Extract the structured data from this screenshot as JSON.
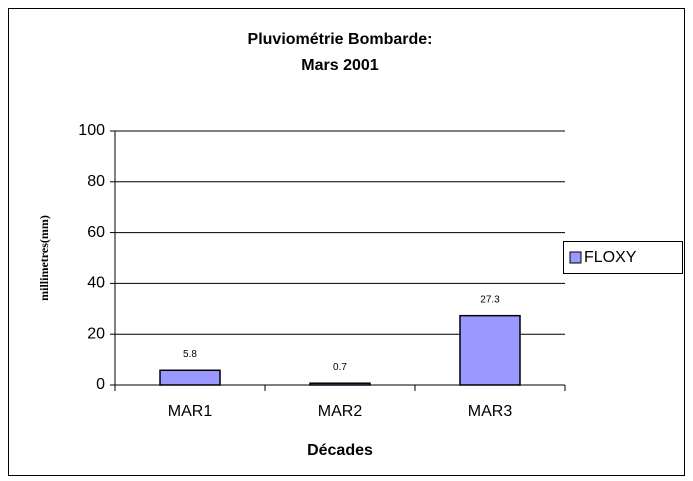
{
  "chart_data": {
    "type": "bar",
    "title": [
      "Pluviométrie Bombarde:",
      "Mars 2001"
    ],
    "x_label": "Décades",
    "y_label": "millimetres(mm)",
    "categories": [
      "MAR1",
      "MAR2",
      "MAR3"
    ],
    "series": [
      {
        "name": "FLOXY",
        "color": "#9999ff",
        "values": [
          5.8,
          0.7,
          27.3
        ]
      }
    ],
    "ylim": [
      0,
      100
    ],
    "yticks": [
      0,
      20,
      40,
      60,
      80,
      100
    ],
    "grid": true,
    "legend": "right"
  }
}
